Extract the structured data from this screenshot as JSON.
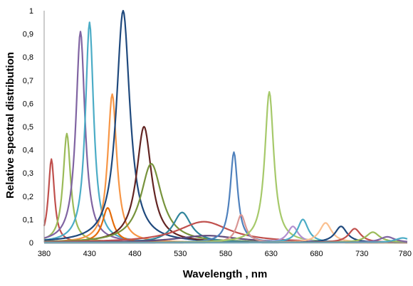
{
  "chart_data": {
    "type": "line",
    "title": "",
    "xlabel": "Wavelength , nm",
    "ylabel": "Relative  spectral distribution",
    "xlim": [
      380,
      780
    ],
    "ylim": [
      0,
      1
    ],
    "x_ticks": [
      "380",
      "430",
      "480",
      "530",
      "580",
      "630",
      "680",
      "730",
      "780"
    ],
    "y_ticks": [
      "0",
      "0,1",
      "0,2",
      "0,3",
      "0,4",
      "0,5",
      "0,6",
      "0,7",
      "0,8",
      "0,9",
      "1"
    ],
    "grid": false,
    "legend": "none",
    "series": [
      {
        "color": "#c0504d",
        "peak_wavelength": 388,
        "peak_value": 0.36,
        "fwhm": 8
      },
      {
        "color": "#9bbb59",
        "peak_wavelength": 405,
        "peak_value": 0.47,
        "fwhm": 10
      },
      {
        "color": "#8064a2",
        "peak_wavelength": 420,
        "peak_value": 0.91,
        "fwhm": 12
      },
      {
        "color": "#4bacc6",
        "peak_wavelength": 430,
        "peak_value": 0.95,
        "fwhm": 11
      },
      {
        "color": "#e46c0a",
        "peak_wavelength": 450,
        "peak_value": 0.15,
        "fwhm": 14
      },
      {
        "color": "#f79646",
        "peak_wavelength": 455,
        "peak_value": 0.64,
        "fwhm": 12
      },
      {
        "color": "#1f497d",
        "peak_wavelength": 467,
        "peak_value": 1.0,
        "fwhm": 18
      },
      {
        "color": "#632523",
        "peak_wavelength": 490,
        "peak_value": 0.5,
        "fwhm": 20
      },
      {
        "color": "#77933c",
        "peak_wavelength": 498,
        "peak_value": 0.34,
        "fwhm": 28
      },
      {
        "color": "#31859c",
        "peak_wavelength": 532,
        "peak_value": 0.13,
        "fwhm": 24
      },
      {
        "color": "#c0504d",
        "peak_wavelength": 556,
        "peak_value": 0.09,
        "fwhm": 70
      },
      {
        "color": "#60497a",
        "peak_wavelength": 560,
        "peak_value": 0.03,
        "fwhm": 80
      },
      {
        "color": "#4f81bd",
        "peak_wavelength": 589,
        "peak_value": 0.39,
        "fwhm": 10
      },
      {
        "color": "#d99694",
        "peak_wavelength": 597,
        "peak_value": 0.12,
        "fwhm": 12
      },
      {
        "color": "#a6c96a",
        "peak_wavelength": 628,
        "peak_value": 0.65,
        "fwhm": 12
      },
      {
        "color": "#b28fd0",
        "peak_wavelength": 654,
        "peak_value": 0.07,
        "fwhm": 14
      },
      {
        "color": "#4bacc6",
        "peak_wavelength": 665,
        "peak_value": 0.1,
        "fwhm": 14
      },
      {
        "color": "#fac090",
        "peak_wavelength": 690,
        "peak_value": 0.085,
        "fwhm": 16
      },
      {
        "color": "#1f497d",
        "peak_wavelength": 707,
        "peak_value": 0.07,
        "fwhm": 16
      },
      {
        "color": "#c0504d",
        "peak_wavelength": 722,
        "peak_value": 0.06,
        "fwhm": 16
      },
      {
        "color": "#9bbb59",
        "peak_wavelength": 742,
        "peak_value": 0.045,
        "fwhm": 18
      },
      {
        "color": "#8064a2",
        "peak_wavelength": 758,
        "peak_value": 0.025,
        "fwhm": 20
      },
      {
        "color": "#4bacc6",
        "peak_wavelength": 775,
        "peak_value": 0.02,
        "fwhm": 20
      }
    ]
  }
}
